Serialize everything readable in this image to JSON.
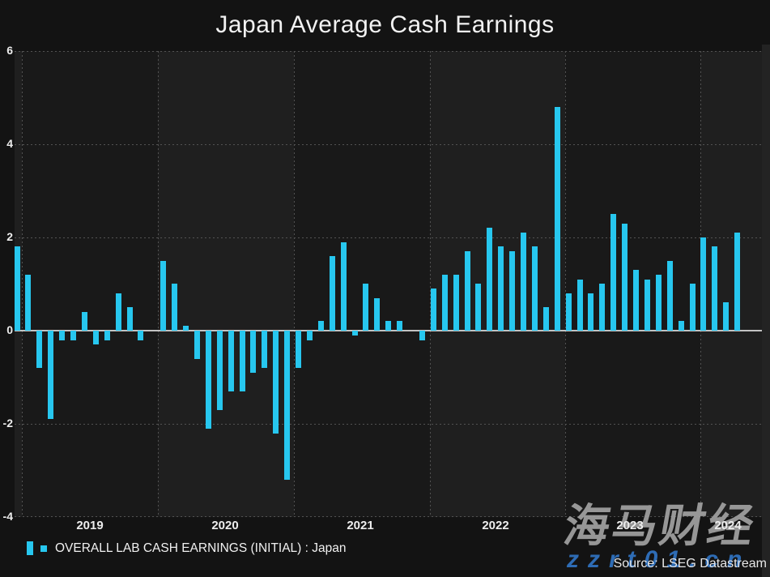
{
  "title": "Japan Average Cash Earnings",
  "legend": {
    "label": "OVERALL LAB CASH EARNINGS (INITIAL) : Japan"
  },
  "source_text": "Source: LSEG Datastream",
  "watermark": {
    "cjk_text": "海马财经",
    "url_text": "zzrt01.cn"
  },
  "colors": {
    "bar": "#27c7ef",
    "background": "#131313",
    "band_dark": "#191919",
    "band_light": "#1f1f1f",
    "gridline": "#525252",
    "zero_line": "#c3c3c3",
    "text": "#ededed",
    "watermark_gray": "#a2a2a2",
    "watermark_blue": "#2e6cb5"
  },
  "chart_data": {
    "type": "bar",
    "title": "Japan Average Cash Earnings",
    "xlabel": "",
    "ylabel": "",
    "ylim": [
      -4,
      6
    ],
    "yticks": [
      6,
      4,
      2,
      0,
      -2,
      -4
    ],
    "grid": "dashed",
    "legend_position": "bottom-left",
    "x_tick_labels": [
      "2019",
      "2020",
      "2021",
      "2022",
      "2023",
      "2024"
    ],
    "frequency": "monthly",
    "series": [
      {
        "name": "OVERALL LAB CASH EARNINGS (INITIAL) : Japan",
        "year_order": [
          "2018",
          "2019",
          "2020",
          "2021",
          "2022",
          "2023",
          "2024"
        ],
        "values_by_year": {
          "2018": [
            1.8
          ],
          "2019": [
            1.2,
            -0.8,
            -1.9,
            -0.2,
            -0.2,
            0.4,
            -0.3,
            -0.2,
            0.8,
            0.5,
            -0.2,
            0.0
          ],
          "2020": [
            1.5,
            1.0,
            0.1,
            -0.6,
            -2.1,
            -1.7,
            -1.3,
            -1.3,
            -0.9,
            -0.8,
            -2.2,
            -3.2
          ],
          "2021": [
            -0.8,
            -0.2,
            0.2,
            1.6,
            1.9,
            -0.1,
            1.0,
            0.7,
            0.2,
            0.2,
            0.0,
            -0.2
          ],
          "2022": [
            0.9,
            1.2,
            1.2,
            1.7,
            1.0,
            2.2,
            1.8,
            1.7,
            2.1,
            1.8,
            0.5,
            4.8
          ],
          "2023": [
            0.8,
            1.1,
            0.8,
            1.0,
            2.5,
            2.3,
            1.3,
            1.1,
            1.2,
            1.5,
            0.2,
            1.0
          ],
          "2024": [
            2.0,
            1.8,
            0.6,
            2.1
          ]
        },
        "note_2018": "single partial bar (Dec 2018) clipped at left plot edge"
      }
    ]
  }
}
